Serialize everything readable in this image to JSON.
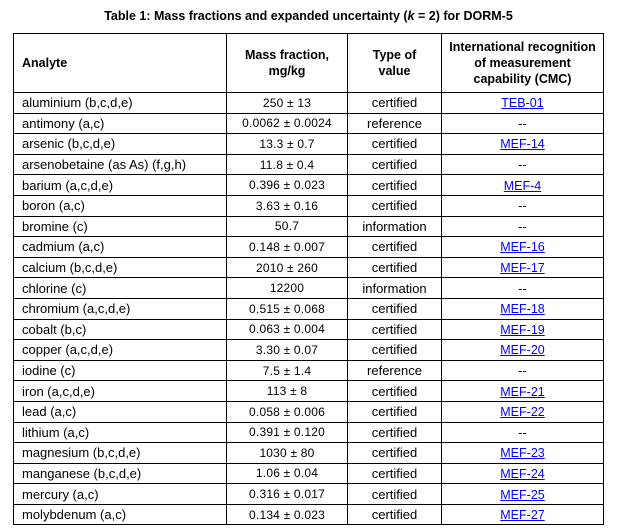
{
  "title": {
    "prefix": "Table 1: Mass fractions and expanded uncertainty (",
    "k_symbol": "k",
    "suffix": " = 2) for DORM-5"
  },
  "colors": {
    "link": "#0000ff",
    "text": "#000000",
    "border": "#000000",
    "background": "#ffffff"
  },
  "table": {
    "headers": {
      "analyte": "Analyte",
      "mass_fraction": "Mass fraction,\nmg/kg",
      "type_of_value": "Type of\nvalue",
      "cmc": "International recognition\nof measurement\ncapability (CMC)"
    },
    "empty_marker": "--",
    "rows": [
      {
        "analyte": "aluminium (b,c,d,e)",
        "mass_fraction": "250 ± 13",
        "type_of_value": "certified",
        "cmc": "TEB-01",
        "cmc_is_link": true
      },
      {
        "analyte": "antimony (a,c)",
        "mass_fraction": "0.0062 ± 0.0024",
        "type_of_value": "reference",
        "cmc": "--",
        "cmc_is_link": false
      },
      {
        "analyte": "arsenic (b,c,d,e)",
        "mass_fraction": "13.3 ± 0.7",
        "type_of_value": "certified",
        "cmc": "MEF-14",
        "cmc_is_link": true
      },
      {
        "analyte": "arsenobetaine (as As) (f,g,h)",
        "mass_fraction": "11.8 ± 0.4",
        "type_of_value": "certified",
        "cmc": "--",
        "cmc_is_link": false
      },
      {
        "analyte": "barium (a,c,d,e)",
        "mass_fraction": "0.396 ± 0.023",
        "type_of_value": "certified",
        "cmc": "MEF-4",
        "cmc_is_link": true
      },
      {
        "analyte": "boron (a,c)",
        "mass_fraction": "3.63 ± 0.16",
        "type_of_value": "certified",
        "cmc": "--",
        "cmc_is_link": false
      },
      {
        "analyte": "bromine (c)",
        "mass_fraction": "50.7",
        "type_of_value": "information",
        "cmc": "--",
        "cmc_is_link": false
      },
      {
        "analyte": "cadmium (a,c)",
        "mass_fraction": "0.148 ± 0.007",
        "type_of_value": "certified",
        "cmc": "MEF-16",
        "cmc_is_link": true
      },
      {
        "analyte": "calcium (b,c,d,e)",
        "mass_fraction": "2010 ± 260",
        "type_of_value": "certified",
        "cmc": "MEF-17",
        "cmc_is_link": true
      },
      {
        "analyte": "chlorine (c)",
        "mass_fraction": "12200",
        "type_of_value": "information",
        "cmc": "--",
        "cmc_is_link": false
      },
      {
        "analyte": "chromium (a,c,d,e)",
        "mass_fraction": "0.515 ± 0.068",
        "type_of_value": "certified",
        "cmc": "MEF-18",
        "cmc_is_link": true
      },
      {
        "analyte": "cobalt (b,c)",
        "mass_fraction": "0.063 ± 0.004",
        "type_of_value": "certified",
        "cmc": "MEF-19",
        "cmc_is_link": true
      },
      {
        "analyte": "copper (a,c,d,e)",
        "mass_fraction": "3.30 ± 0.07",
        "type_of_value": "certified",
        "cmc": "MEF-20",
        "cmc_is_link": true
      },
      {
        "analyte": "iodine (c)",
        "mass_fraction": "7.5 ± 1.4",
        "type_of_value": "reference",
        "cmc": "--",
        "cmc_is_link": false
      },
      {
        "analyte": "iron (a,c,d,e)",
        "mass_fraction": "113 ± 8",
        "type_of_value": "certified",
        "cmc": "MEF-21",
        "cmc_is_link": true
      },
      {
        "analyte": "lead (a,c)",
        "mass_fraction": "0.058 ± 0.006",
        "type_of_value": "certified",
        "cmc": "MEF-22",
        "cmc_is_link": true
      },
      {
        "analyte": "lithium (a,c)",
        "mass_fraction": "0.391 ± 0.120",
        "type_of_value": "certified",
        "cmc": "--",
        "cmc_is_link": false
      },
      {
        "analyte": "magnesium (b,c,d,e)",
        "mass_fraction": "1030 ± 80",
        "type_of_value": "certified",
        "cmc": "MEF-23",
        "cmc_is_link": true
      },
      {
        "analyte": "manganese (b,c,d,e)",
        "mass_fraction": "1.06 ± 0.04",
        "type_of_value": "certified",
        "cmc": "MEF-24",
        "cmc_is_link": true
      },
      {
        "analyte": "mercury (a,c)",
        "mass_fraction": "0.316 ± 0.017",
        "type_of_value": "certified",
        "cmc": "MEF-25",
        "cmc_is_link": true
      },
      {
        "analyte": "molybdenum (a,c)",
        "mass_fraction": "0.134 ± 0.023",
        "type_of_value": "certified",
        "cmc": "MEF-27",
        "cmc_is_link": true
      }
    ]
  }
}
